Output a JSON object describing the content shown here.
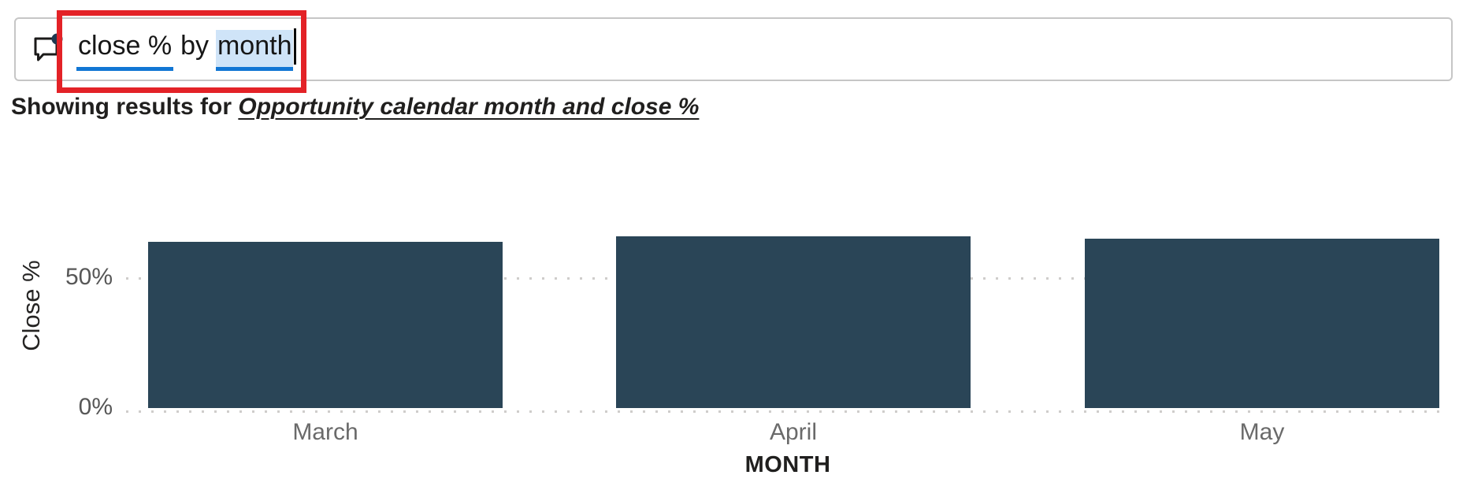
{
  "qa": {
    "full_text": "close % by month",
    "parts": [
      {
        "text": "close %",
        "underlined": true,
        "selected": false
      },
      {
        "text": "by",
        "underlined": false,
        "selected": false
      },
      {
        "text": "month",
        "underlined": true,
        "selected": true
      }
    ]
  },
  "results": {
    "prefix": "Showing results for ",
    "interpretation": "Opportunity calendar month and close %"
  },
  "chart_data": {
    "type": "bar",
    "title": "",
    "categories": [
      "March",
      "April",
      "May"
    ],
    "values": [
      64,
      66,
      65
    ],
    "unit": "%",
    "xlabel": "MONTH",
    "ylabel": "Close %",
    "ylim": [
      0,
      100
    ],
    "y_ticks": [
      "0%",
      "50%"
    ],
    "grid": "dotted horizontal at 50%",
    "legend": "none",
    "bar_color": "#2a4557"
  },
  "colors": {
    "accent_blue": "#1176d4",
    "selection_blue": "#cfe4f8",
    "annotation_red": "#e32227",
    "bar": "#2a4557",
    "grid_dots": "#cfcdcb",
    "axis_text": "#575757",
    "category_text": "#6a6a6a",
    "dark_text": "#201f1e",
    "input_border": "#c6c6c6"
  },
  "icons": {
    "qa_bubble": "speech-bubble-with-dot"
  }
}
